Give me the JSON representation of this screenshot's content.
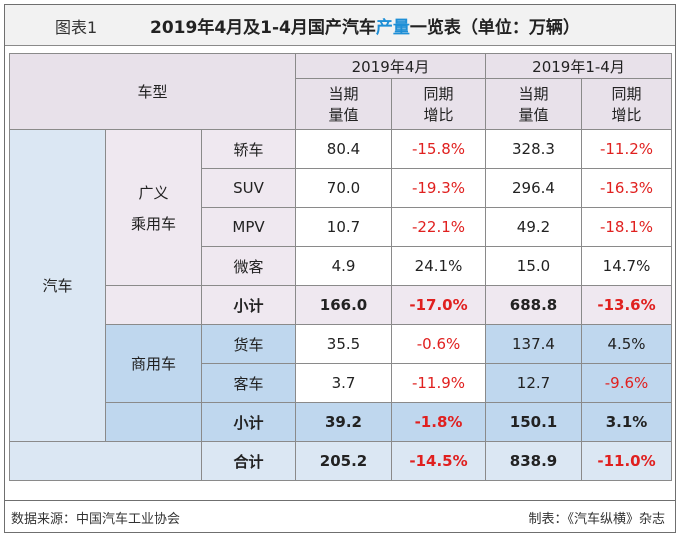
{
  "figure_label": "图表1",
  "title_prefix": "2019年4月及1-4月国产汽车",
  "title_highlight": "产量",
  "title_suffix": "一览表（单位：万辆）",
  "header": {
    "vehicle_type": "车型",
    "period_apr": "2019年4月",
    "period_ytd": "2019年1-4月",
    "current_line1": "当期",
    "current_line2": "量值",
    "yoy_line1": "同期",
    "yoy_line2": "增比"
  },
  "categories": {
    "auto": "汽车",
    "passenger_line1": "广义",
    "passenger_line2": "乘用车",
    "commercial": "商用车"
  },
  "rows": [
    {
      "label": "轿车",
      "apr_value": "80.4",
      "apr_yoy": "-15.8%",
      "ytd_value": "328.3",
      "ytd_yoy": "-11.2%"
    },
    {
      "label": "SUV",
      "apr_value": "70.0",
      "apr_yoy": "-19.3%",
      "ytd_value": "296.4",
      "ytd_yoy": "-16.3%"
    },
    {
      "label": "MPV",
      "apr_value": "10.7",
      "apr_yoy": "-22.1%",
      "ytd_value": "49.2",
      "ytd_yoy": "-18.1%"
    },
    {
      "label": "微客",
      "apr_value": "4.9",
      "apr_yoy": "24.1%",
      "ytd_value": "15.0",
      "ytd_yoy": "14.7%"
    },
    {
      "label": "小计",
      "apr_value": "166.0",
      "apr_yoy": "-17.0%",
      "ytd_value": "688.8",
      "ytd_yoy": "-13.6%"
    },
    {
      "label": "货车",
      "apr_value": "35.5",
      "apr_yoy": "-0.6%",
      "ytd_value": "137.4",
      "ytd_yoy": "4.5%"
    },
    {
      "label": "客车",
      "apr_value": "3.7",
      "apr_yoy": "-11.9%",
      "ytd_value": "12.7",
      "ytd_yoy": "-9.6%"
    },
    {
      "label": "小计",
      "apr_value": "39.2",
      "apr_yoy": "-1.8%",
      "ytd_value": "150.1",
      "ytd_yoy": "3.1%"
    },
    {
      "label": "合计",
      "apr_value": "205.2",
      "apr_yoy": "-14.5%",
      "ytd_value": "838.9",
      "ytd_yoy": "-11.0%"
    }
  ],
  "footer": {
    "source": "数据来源：中国汽车工业协会",
    "maker": "制表：《汽车纵横》杂志"
  }
}
